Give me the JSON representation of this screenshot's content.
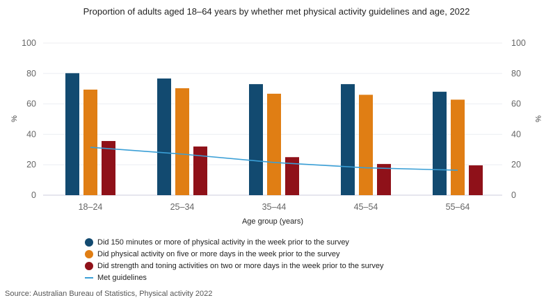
{
  "chart_data": {
    "type": "bar",
    "title": "Proportion of adults aged 18–64 years by whether met physical activity guidelines and age, 2022",
    "xlabel": "Age group (years)",
    "ylabel": "%",
    "ylabel_right": "%",
    "ylim": [
      0,
      100
    ],
    "yticks": [
      "0",
      "20",
      "40",
      "60",
      "80",
      "100"
    ],
    "grid": true,
    "legend_position": "bottom",
    "categories": [
      "18–24",
      "25–34",
      "35–44",
      "45–54",
      "55–64"
    ],
    "series": [
      {
        "name": "Did 150 minutes or more of physical activity in the week prior to the survey",
        "type": "bar",
        "color": "#124a70",
        "values": [
          80.2,
          76.7,
          73,
          73,
          68
        ]
      },
      {
        "name": "Did physical activity on five or more days in the week prior to the survey",
        "type": "bar",
        "color": "#e07e14",
        "values": [
          69.4,
          70.3,
          66.7,
          66,
          62.8
        ]
      },
      {
        "name": "Did strength and toning activities on two or more days in the week prior to the survey",
        "type": "bar",
        "color": "#8f1119",
        "values": [
          35.6,
          32,
          25,
          20.5,
          19.6
        ]
      },
      {
        "name": "Met guidelines",
        "type": "line",
        "color": "#3a9fd6",
        "values": [
          31.5,
          27,
          21.5,
          18,
          16.4
        ]
      }
    ]
  },
  "source": "Source: Australian Bureau of Statistics, Physical activity 2022"
}
